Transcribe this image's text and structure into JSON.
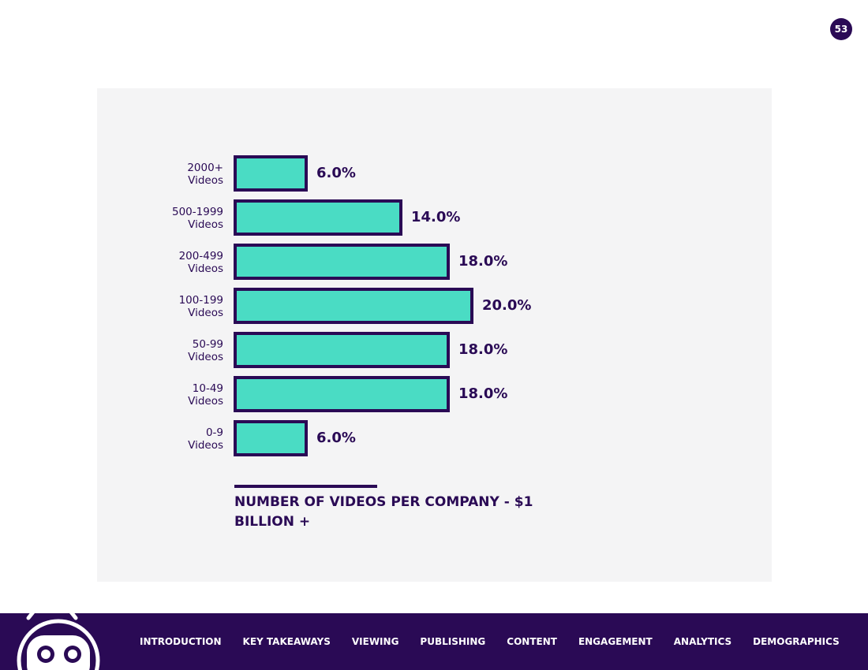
{
  "page_number": "53",
  "chart_data": {
    "type": "bar",
    "orientation": "horizontal",
    "title": "NUMBER OF VIDEOS PER COMPANY - $1 BILLION +",
    "categories": [
      [
        "2000+",
        "Videos"
      ],
      [
        "500-1999",
        "Videos"
      ],
      [
        "200-499",
        "Videos"
      ],
      [
        "100-199",
        "Videos"
      ],
      [
        "50-99",
        "Videos"
      ],
      [
        "10-49",
        "Videos"
      ],
      [
        "0-9",
        "Videos"
      ]
    ],
    "values": [
      6.0,
      14.0,
      18.0,
      20.0,
      18.0,
      18.0,
      6.0
    ],
    "value_labels": [
      "6.0%",
      "14.0%",
      "18.0%",
      "20.0%",
      "18.0%",
      "18.0%",
      "6.0%"
    ],
    "unit": "%",
    "xlim": [
      0,
      20
    ],
    "bar_fill": "#4adcc4",
    "bar_stroke": "#2a0a55",
    "grid": false
  },
  "footer": {
    "nav": [
      "INTRODUCTION",
      "KEY TAKEAWAYS",
      "VIEWING",
      "PUBLISHING",
      "CONTENT",
      "ENGAGEMENT",
      "ANALYTICS",
      "DEMOGRAPHICS"
    ]
  },
  "colors": {
    "brand_dark": "#2a0a55",
    "accent": "#4adcc4",
    "panel": "#f4f4f5"
  }
}
